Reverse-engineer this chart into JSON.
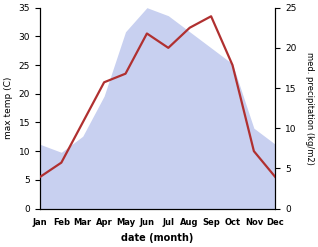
{
  "months": [
    "Jan",
    "Feb",
    "Mar",
    "Apr",
    "May",
    "Jun",
    "Jul",
    "Aug",
    "Sep",
    "Oct",
    "Nov",
    "Dec"
  ],
  "x": [
    1,
    2,
    3,
    4,
    5,
    6,
    7,
    8,
    9,
    10,
    11,
    12
  ],
  "temperature": [
    5.5,
    8.0,
    15.0,
    22.0,
    23.5,
    30.5,
    28.0,
    31.5,
    33.5,
    25.0,
    10.0,
    5.5
  ],
  "precipitation": [
    8,
    7,
    9,
    14,
    22,
    25,
    24,
    22,
    20,
    18,
    10,
    8
  ],
  "temp_color": "#b03030",
  "precip_fill_color": "#c8d0f0",
  "precip_edge_color": "#aab4e8",
  "ylabel_left": "max temp (C)",
  "ylabel_right": "med. precipitation (kg/m2)",
  "xlabel": "date (month)",
  "ylim_left": [
    0,
    35
  ],
  "ylim_right": [
    0,
    25
  ],
  "yticks_left": [
    0,
    5,
    10,
    15,
    20,
    25,
    30,
    35
  ],
  "yticks_right": [
    0,
    5,
    10,
    15,
    20,
    25
  ],
  "temp_linewidth": 1.6
}
